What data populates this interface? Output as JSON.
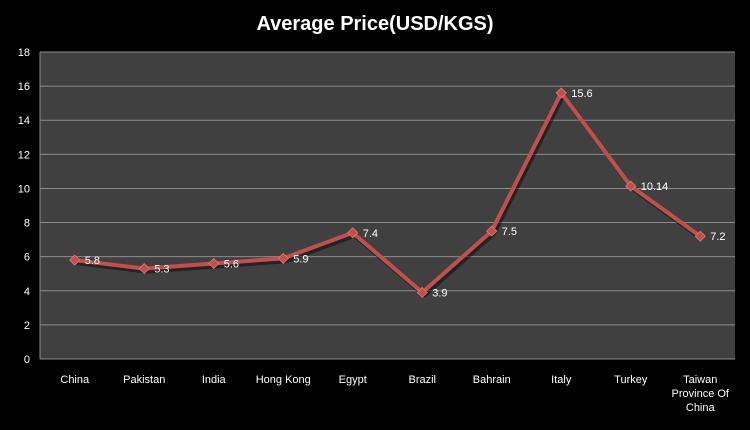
{
  "chart_data": {
    "type": "line",
    "title": "Average Price(USD/KGS)",
    "categories": [
      "China",
      "Pakistan",
      "India",
      "Hong Kong",
      "Egypt",
      "Brazil",
      "Bahrain",
      "Italy",
      "Turkey",
      "Taiwan Province Of China"
    ],
    "category_lines": [
      [
        "China"
      ],
      [
        "Pakistan"
      ],
      [
        "India"
      ],
      [
        "Hong Kong"
      ],
      [
        "Egypt"
      ],
      [
        "Brazil"
      ],
      [
        "Bahrain"
      ],
      [
        "Italy"
      ],
      [
        "Turkey"
      ],
      [
        "Taiwan",
        "Province Of",
        "China"
      ]
    ],
    "values": [
      5.8,
      5.3,
      5.6,
      5.9,
      7.4,
      3.9,
      7.5,
      15.6,
      10.14,
      7.2
    ],
    "value_labels": [
      "5.8",
      "5.3",
      "5.6",
      "5.9",
      "7.4",
      "3.9",
      "7.5",
      "15.6",
      "10.14",
      "7.2"
    ],
    "ylim": [
      0,
      18
    ],
    "yticks": [
      0,
      2,
      4,
      6,
      8,
      10,
      12,
      14,
      16,
      18
    ],
    "grid": true,
    "legend": "none",
    "colors": {
      "background": "#000000",
      "plot_area": "#404040",
      "gridline": "#8c8c8c",
      "line": "#c0504d",
      "marker": "#c0504d",
      "text": "#ffffff"
    }
  }
}
